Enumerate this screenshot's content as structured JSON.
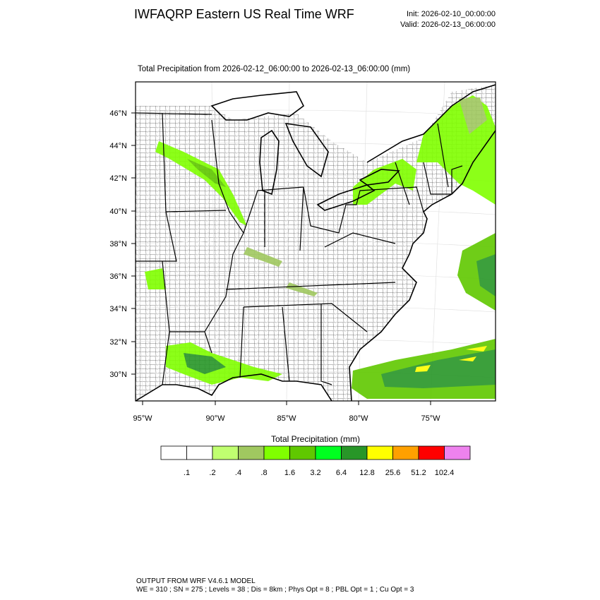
{
  "header": {
    "title": "IWFAQRP Eastern US Real Time WRF",
    "init": "Init: 2026-02-10_00:00:00",
    "valid": "Valid: 2026-02-13_06:00:00"
  },
  "map": {
    "subtitle": "Total Precipitation from 2026-02-12_06:00:00 to 2026-02-13_06:00:00   (mm)",
    "lat_labels": [
      "46°N",
      "44°N",
      "42°N",
      "40°N",
      "38°N",
      "36°N",
      "34°N",
      "32°N",
      "30°N"
    ],
    "lon_labels": [
      "95°W",
      "90°W",
      "85°W",
      "80°W",
      "75°W"
    ]
  },
  "colorbar": {
    "title": "Total Precipitation  (mm)",
    "labels": [
      ".1",
      ".2",
      ".4",
      ".8",
      "1.6",
      "3.2",
      "6.4",
      "12.8",
      "25.6",
      "51.2",
      "102.4"
    ],
    "colors": [
      "#ffffff",
      "#ffffff",
      "#c0ff70",
      "#a0c860",
      "#80ff00",
      "#60c800",
      "#00ff20",
      "#289628",
      "#ffff00",
      "#ffa000",
      "#ff0000",
      "#ee82ee"
    ]
  },
  "footer": {
    "lines": [
      "OUTPUT FROM WRF V4.6.1 MODEL",
      "WE = 310 ; SN = 275 ; Levels = 38 ; Dis = 8km ; Phys Opt = 8 ; PBL Opt = 1 ; Cu Opt = 3"
    ]
  }
}
